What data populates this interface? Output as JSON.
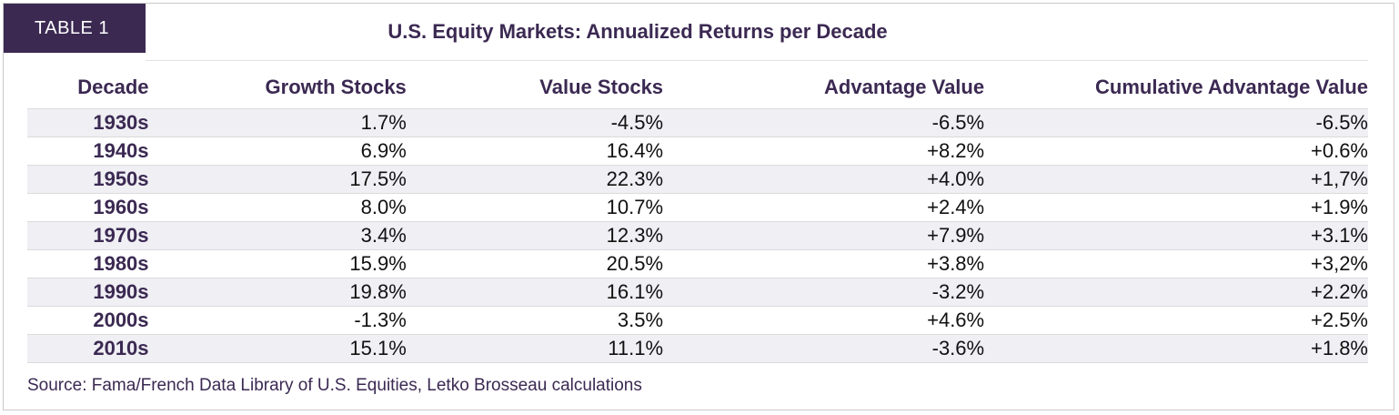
{
  "tag": "TABLE 1",
  "title": "U.S. Equity Markets: Annualized Returns per Decade",
  "columns": [
    "Decade",
    "Growth Stocks",
    "Value Stocks",
    "Advantage Value",
    "Cumulative Advantage Value"
  ],
  "rows": [
    [
      "1930s",
      "1.7%",
      "-4.5%",
      "-6.5%",
      "-6.5%"
    ],
    [
      "1940s",
      "6.9%",
      "16.4%",
      "+8.2%",
      "+0.6%"
    ],
    [
      "1950s",
      "17.5%",
      "22.3%",
      "+4.0%",
      "+1,7%"
    ],
    [
      "1960s",
      "8.0%",
      "10.7%",
      "+2.4%",
      "+1.9%"
    ],
    [
      "1970s",
      "3.4%",
      "12.3%",
      "+7.9%",
      "+3.1%"
    ],
    [
      "1980s",
      "15.9%",
      "20.5%",
      "+3.8%",
      "+3,2%"
    ],
    [
      "1990s",
      "19.8%",
      "16.1%",
      "-3.2%",
      "+2.2%"
    ],
    [
      "2000s",
      "-1.3%",
      "3.5%",
      "+4.6%",
      "+2.5%"
    ],
    [
      "2010s",
      "15.1%",
      "11.1%",
      "-3.6%",
      "+1.8%"
    ]
  ],
  "source": "Source: Fama/French Data Library of U.S. Equities, Letko Brosseau calculations",
  "colors": {
    "accent": "#3b2952",
    "row_shade": "#efeff4"
  }
}
